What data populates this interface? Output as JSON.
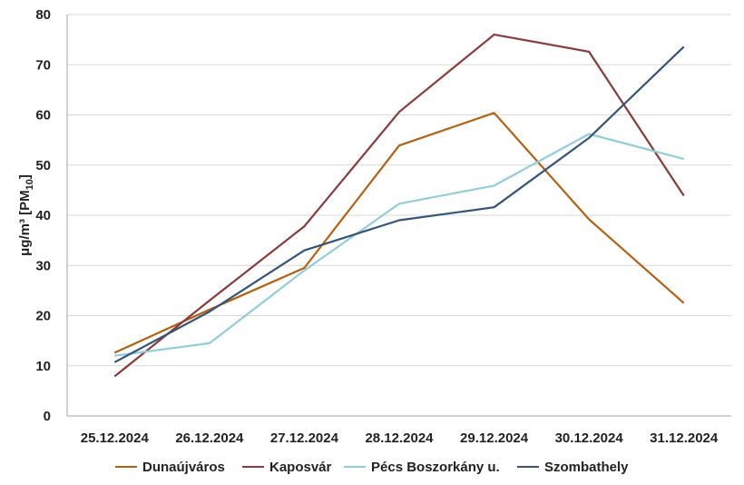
{
  "chart_data": {
    "type": "line",
    "title": "",
    "xlabel": "",
    "ylabel": "μg/m³  [PM",
    "ylabel_sub": "10",
    "ylabel_close": "]",
    "ylim": [
      0,
      80
    ],
    "yticks": [
      "0",
      "10",
      "20",
      "30",
      "40",
      "50",
      "60",
      "70",
      "80"
    ],
    "grid": true,
    "legend_position": "bottom",
    "categories": [
      "25.12.2024",
      "26.12.2024",
      "27.12.2024",
      "28.12.2024",
      "29.12.2024",
      "30.12.2024",
      "31.12.2024"
    ],
    "series": [
      {
        "name": "Dunaújváros",
        "color": "#B5600F",
        "values": [
          12.6,
          21.2,
          29.5,
          53.9,
          60.4,
          39.2,
          22.5
        ]
      },
      {
        "name": "Kaposvár",
        "color": "#8B3A3A",
        "values": [
          7.9,
          23.0,
          37.8,
          60.6,
          76.0,
          72.6,
          43.9
        ]
      },
      {
        "name": "Pécs Boszorkány u.",
        "color": "#93CDDB",
        "values": [
          12.0,
          14.5,
          29.0,
          42.3,
          45.9,
          56.2,
          51.2
        ]
      },
      {
        "name": "Szombathely",
        "color": "#34557A",
        "values": [
          10.7,
          20.8,
          33.0,
          39.0,
          41.6,
          55.4,
          73.6
        ]
      }
    ]
  }
}
